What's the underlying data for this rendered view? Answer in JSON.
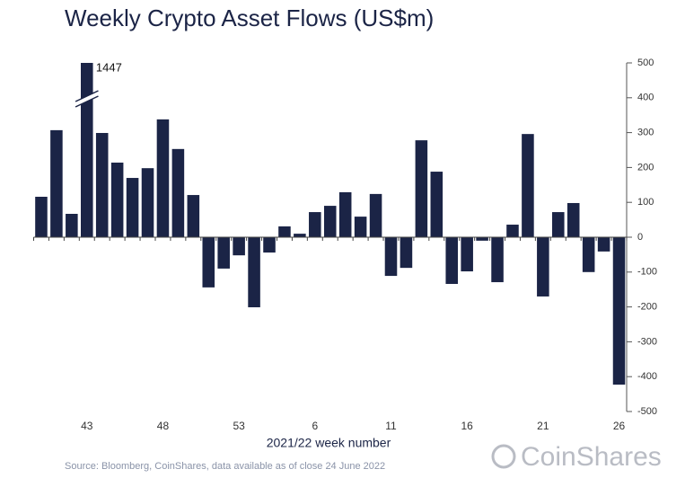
{
  "chart_data": {
    "type": "bar",
    "title": "Weekly Crypto Asset Flows (US$m)",
    "x_label": "2021/22 week number",
    "source": "Source: Bloomberg, CoinShares, data available as of close 24 June 2022",
    "brand": "CoinShares",
    "categories": [
      null,
      null,
      null,
      "43",
      null,
      null,
      null,
      null,
      "48",
      null,
      null,
      null,
      null,
      "53",
      null,
      null,
      null,
      null,
      "6",
      null,
      null,
      null,
      null,
      "11",
      null,
      null,
      null,
      null,
      "16",
      null,
      null,
      null,
      null,
      "21",
      null,
      null,
      null,
      null,
      "26"
    ],
    "values": [
      116,
      307,
      67,
      1447,
      299,
      214,
      170,
      198,
      338,
      253,
      121,
      -144,
      -90,
      -52,
      -201,
      -44,
      31,
      10,
      72,
      90,
      129,
      59,
      124,
      -111,
      -88,
      278,
      188,
      -134,
      -98,
      -10,
      -129,
      36,
      296,
      -170,
      72,
      98,
      -100,
      -41,
      -423
    ],
    "color": "#1b2446",
    "ylim": [
      -500,
      500
    ],
    "yticks": [
      -500,
      -400,
      -300,
      -200,
      -100,
      0,
      100,
      200,
      300,
      400,
      500
    ],
    "y_axis_side": "right"
  }
}
